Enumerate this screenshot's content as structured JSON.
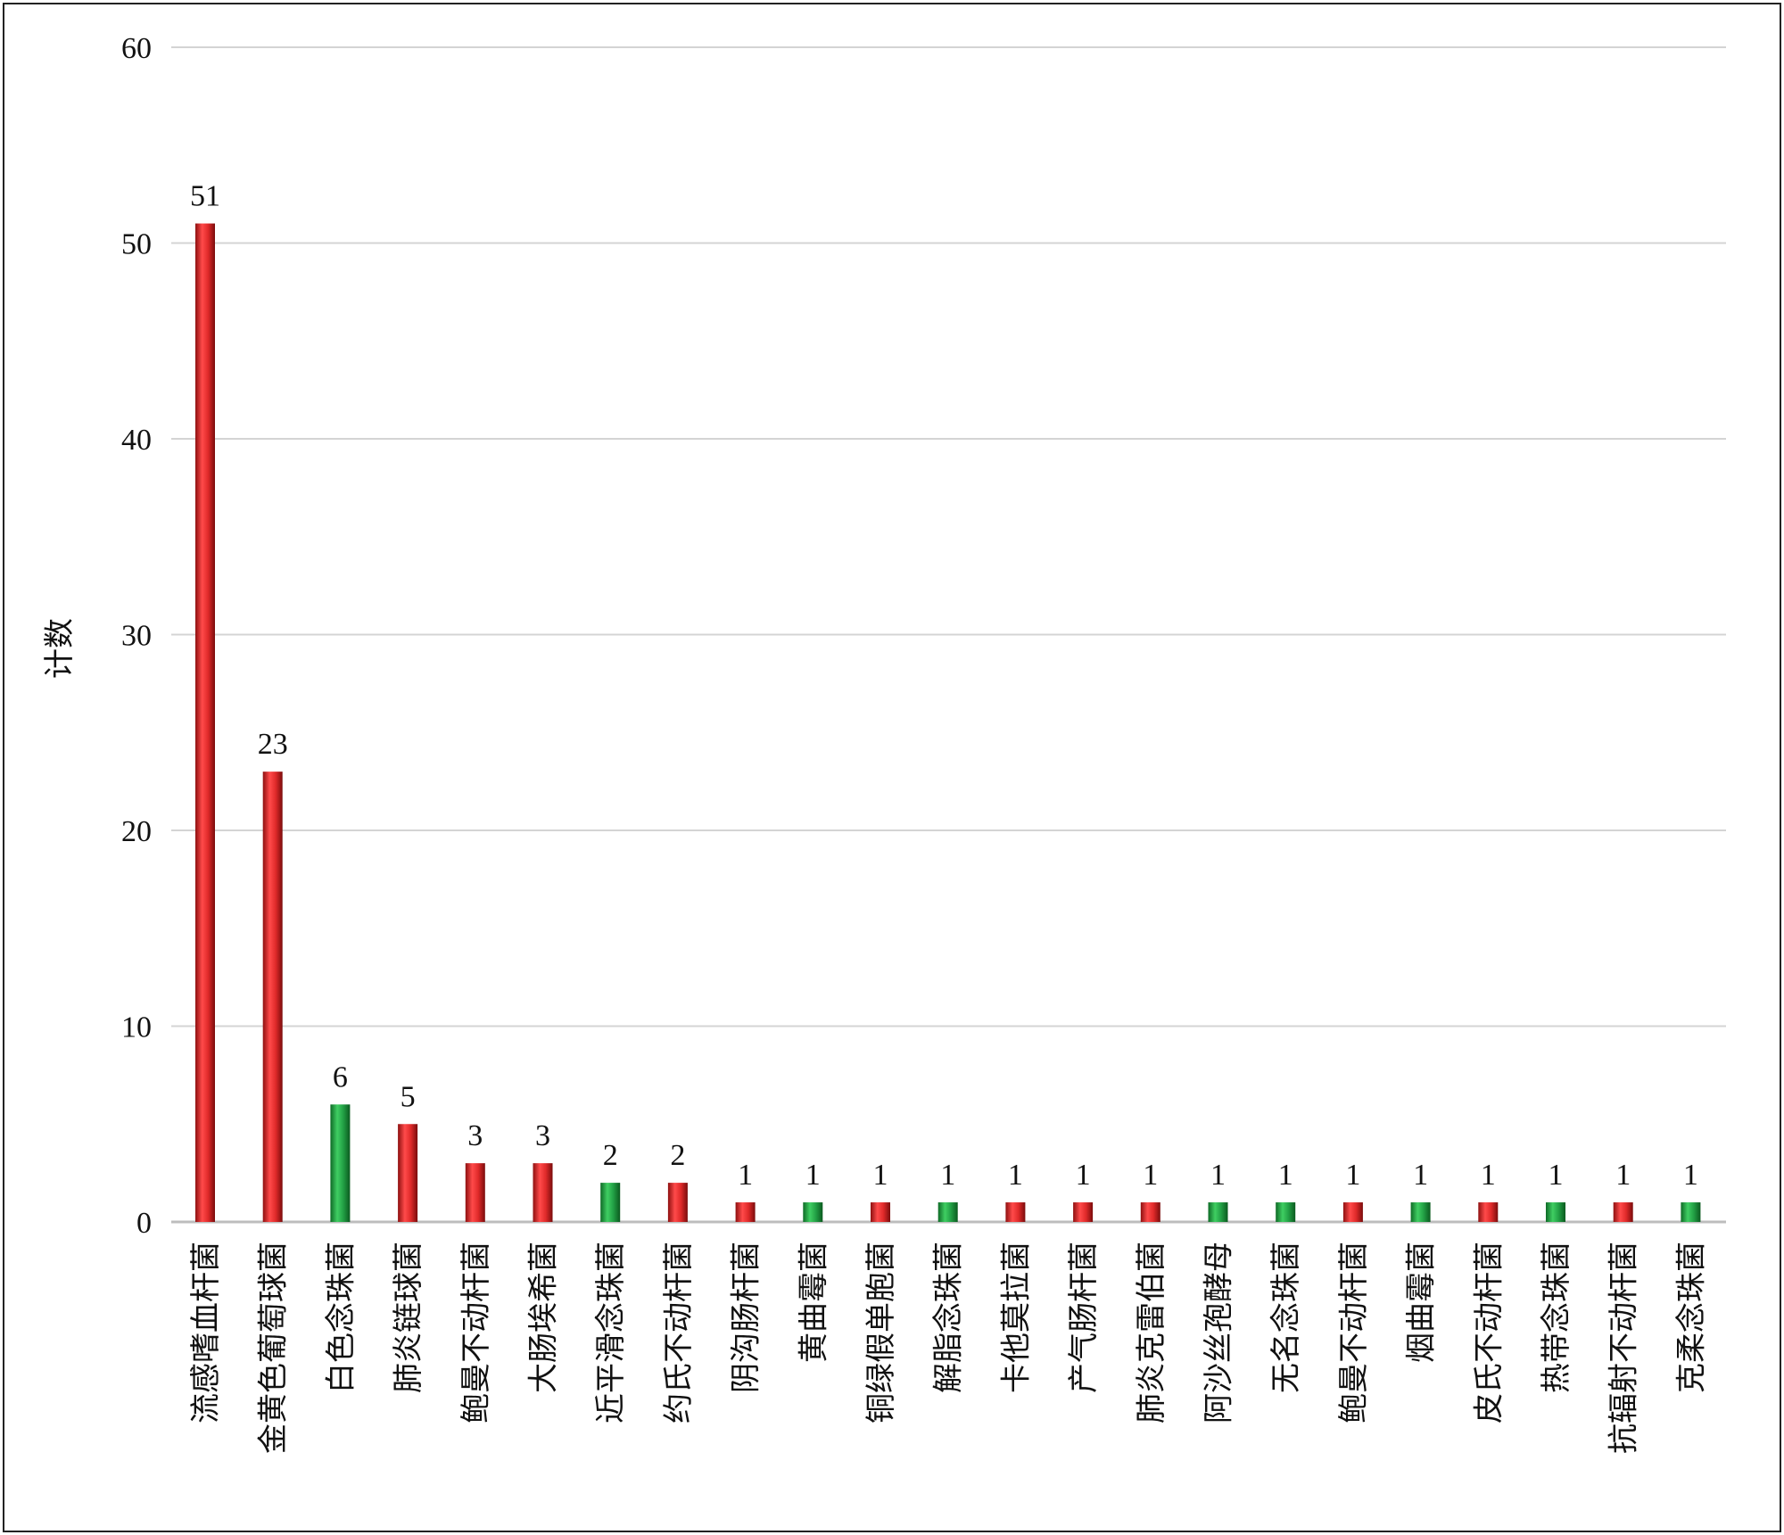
{
  "chart_data": {
    "type": "bar",
    "title": "",
    "xlabel": "",
    "ylabel": "计数",
    "ylim": [
      0,
      60
    ],
    "yticks": [
      0,
      10,
      20,
      30,
      40,
      50,
      60
    ],
    "grid": true,
    "colors": {
      "red": "#d42a2a",
      "green": "#22a045"
    },
    "categories": [
      "流感嗜血杆菌",
      "金黄色葡萄球菌",
      "白色念珠菌",
      "肺炎链球菌",
      "鲍曼不动杆菌",
      "大肠埃希菌",
      "近平滑念珠菌",
      "约氏不动杆菌",
      "阴沟肠杆菌",
      "黄曲霉菌",
      "铜绿假单胞菌",
      "解脂念珠菌",
      "卡他莫拉菌",
      "产气肠杆菌",
      "肺炎克雷伯菌",
      "阿沙丝孢酵母",
      "无名念珠菌",
      "鲍曼不动杆菌",
      "烟曲霉菌",
      "皮氏不动杆菌",
      "热带念珠菌",
      "抗辐射不动杆菌",
      "克柔念珠菌"
    ],
    "values": [
      51,
      23,
      6,
      5,
      3,
      3,
      2,
      2,
      1,
      1,
      1,
      1,
      1,
      1,
      1,
      1,
      1,
      1,
      1,
      1,
      1,
      1,
      1
    ],
    "bar_colors": [
      "red",
      "red",
      "green",
      "red",
      "red",
      "red",
      "green",
      "red",
      "red",
      "green",
      "red",
      "green",
      "red",
      "red",
      "red",
      "green",
      "green",
      "red",
      "green",
      "red",
      "green",
      "red",
      "green"
    ]
  }
}
